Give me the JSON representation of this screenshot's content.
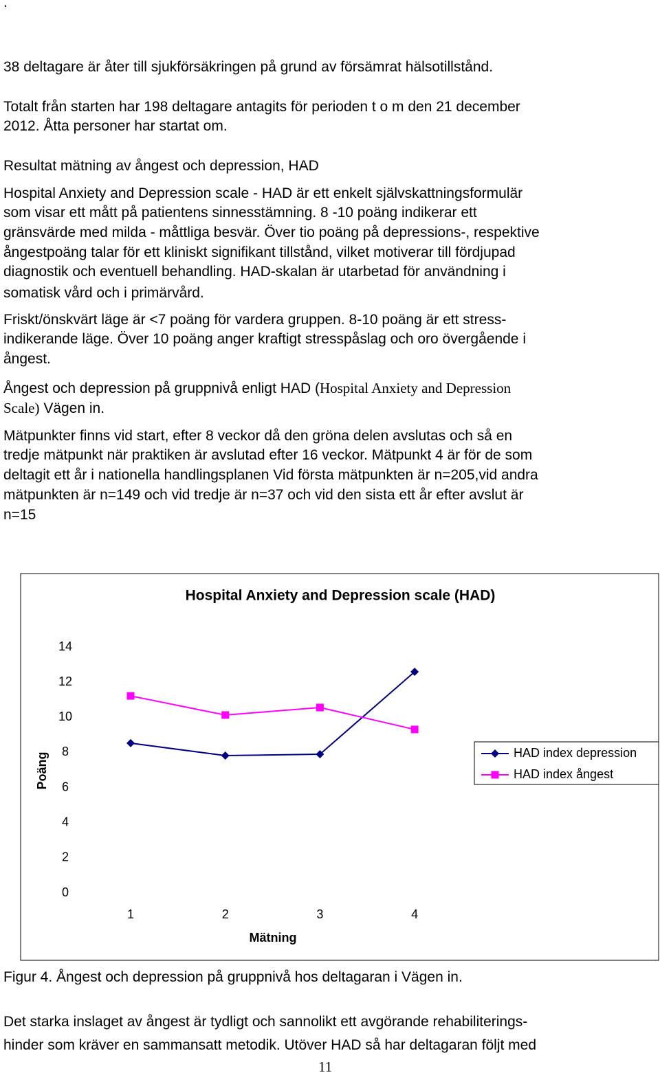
{
  "page_mark": ".",
  "paragraphs": [
    {
      "lines": [
        "38 deltagare är åter till sjukförsäkringen på grund av försämrat hälsotillstånd."
      ]
    },
    {
      "lines": [
        "Totalt från starten har 198 deltagare antagits för perioden t o m den 21 december",
        "2012. Åtta personer har startat om."
      ]
    },
    {
      "lines": [
        "Resultat mätning av ångest och depression, HAD"
      ]
    },
    {
      "lines": [
        "Hospital Anxiety and Depression scale - HAD är ett enkelt självskattningsformulär",
        "som visar ett mått på patientens sinnesstämning. 8 -10 poäng indikerar ett",
        "gränsvärde med milda - måttliga besvär. Över tio poäng på depressions-, respektive",
        "ångestpoäng talar för ett kliniskt signifikant tillstånd, vilket motiverar till fördjupad",
        "diagnostik och eventuell behandling. HAD-skalan är utarbetad för användning i",
        "somatisk vård och i primärvård."
      ]
    },
    {
      "lines": [
        "Friskt/önskvärt läge är <7 poäng för vardera gruppen. 8-10 poäng är ett stress-",
        "indikerande läge. Över 10 poäng anger kraftigt stresspåslag och oro övergående i",
        "ångest."
      ]
    },
    {
      "lines": [
        [
          "Ångest och depression på gruppnivå enligt HAD (",
          "Hospital Anxiety and Depression"
        ],
        [
          "Scale)",
          " Vägen in."
        ]
      ]
    },
    {
      "lines": [
        "Mätpunkter finns vid start, efter 8 veckor då den gröna delen avslutas och så en",
        "tredje mätpunkt när praktiken är avslutad efter 16 veckor. Mätpunkt 4 är för de som",
        "deltagit ett år i nationella handlingsplanen Vid första mätpunkten är n=205,vid andra",
        "mätpunkten är n=149 och vid tredje är n=37 och vid den sista ett år efter avslut är",
        "n=15"
      ]
    }
  ],
  "chart_data": {
    "type": "line",
    "title": "Hospital Anxiety and Depression scale  (HAD)",
    "x_label": "Mätning",
    "y_label": "Poäng",
    "categories": [
      "1",
      "2",
      "3",
      "4"
    ],
    "series": [
      {
        "name": "HAD index depression",
        "color": "#000080",
        "marker": "diamond",
        "values": [
          8.53,
          7.82,
          7.9,
          12.59
        ]
      },
      {
        "name": "HAD index ångest",
        "color": "#ff00ff",
        "marker": "square",
        "values": [
          11.22,
          10.13,
          10.56,
          9.31
        ]
      }
    ],
    "ylim": [
      0,
      14
    ],
    "yticks": [
      0,
      2,
      4,
      6,
      8,
      10,
      12,
      14
    ],
    "grid": false,
    "legend": "right"
  },
  "caption": "Figur 4. Ångest och depression på gruppnivå hos deltagaran i Vägen in.",
  "closing": {
    "lines": [
      "Det starka inslaget av ångest är tydligt och sannolikt ett avgörande rehabiliterings-",
      "hinder som kräver en sammansatt metodik. Utöver HAD så har deltagaran följt med"
    ]
  },
  "page_number": "11"
}
